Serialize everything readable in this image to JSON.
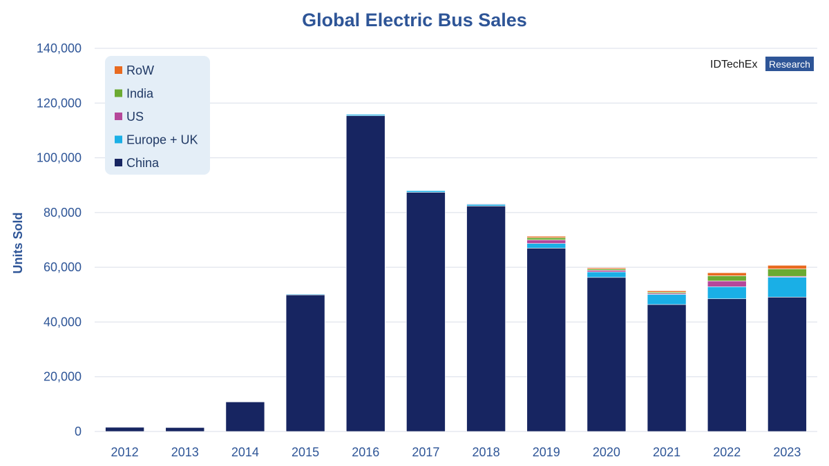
{
  "chart_data": {
    "type": "bar",
    "stacked": true,
    "title": "Global Electric Bus Sales",
    "xlabel": "",
    "ylabel": "Units Sold",
    "ylim": [
      0,
      140000
    ],
    "yticks": [
      0,
      20000,
      40000,
      60000,
      80000,
      100000,
      120000,
      140000
    ],
    "ytick_labels": [
      "0",
      "20,000",
      "40,000",
      "60,000",
      "80,000",
      "100,000",
      "120,000",
      "140,000"
    ],
    "grid": true,
    "legend_position": "top-left",
    "categories": [
      "2012",
      "2013",
      "2014",
      "2015",
      "2016",
      "2017",
      "2018",
      "2019",
      "2020",
      "2021",
      "2022",
      "2023"
    ],
    "series": [
      {
        "name": "China",
        "color": "#172561",
        "values": [
          1600,
          1500,
          10800,
          49900,
          115400,
          87400,
          82400,
          67000,
          56300,
          46400,
          48500,
          49100
        ]
      },
      {
        "name": "Europe + UK",
        "color": "#1AAFE6",
        "values": [
          50,
          60,
          150,
          300,
          500,
          600,
          600,
          1700,
          2000,
          3700,
          4400,
          7300
        ]
      },
      {
        "name": "US",
        "color": "#B5479A",
        "values": [
          0,
          0,
          0,
          100,
          100,
          100,
          200,
          1300,
          600,
          400,
          2100,
          300
        ]
      },
      {
        "name": "India",
        "color": "#6BAA32",
        "values": [
          0,
          0,
          0,
          0,
          0,
          0,
          100,
          800,
          500,
          400,
          1900,
          2700
        ]
      },
      {
        "name": "RoW",
        "color": "#E86A20",
        "values": [
          0,
          0,
          0,
          0,
          0,
          0,
          100,
          500,
          400,
          500,
          1100,
          1300
        ]
      }
    ]
  },
  "legend_order": [
    "RoW",
    "India",
    "US",
    "Europe + UK",
    "China"
  ],
  "branding": {
    "logo_text": "IDTechEx",
    "badge_text": "Research"
  },
  "colors": {
    "accent": "#2E5597",
    "grid": "#D9DEE8",
    "legend_bg": "#E4EEF7",
    "badge": "#2E5597"
  }
}
